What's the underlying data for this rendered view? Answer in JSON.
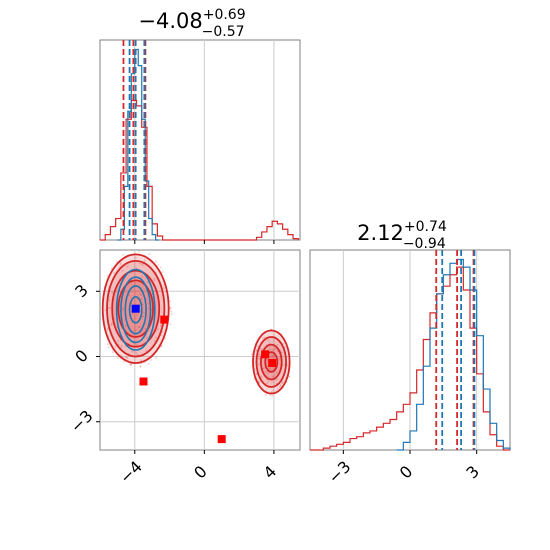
{
  "chart_data": [
    {
      "type": "histogram",
      "panel": "marginal-x",
      "title_main": "−4.08",
      "title_sup": "+0.69",
      "title_sub": "−0.57",
      "xlim": [
        -6,
        5.5
      ],
      "xticks": [
        -4,
        0,
        4
      ],
      "grid": true,
      "series": [
        {
          "color": "#d62728",
          "bin_edges": [
            -6.0,
            -5.7,
            -5.4,
            -5.1,
            -4.8,
            -4.5,
            -4.2,
            -3.9,
            -3.6,
            -3.3,
            -3.0,
            -2.7,
            -2.4,
            -2.1,
            -1.8,
            -1.5,
            -1.2,
            -0.9,
            -0.6,
            -0.3,
            0.0,
            0.3,
            0.6,
            0.9,
            1.2,
            1.5,
            1.8,
            2.1,
            2.4,
            2.7,
            3.0,
            3.3,
            3.6,
            3.9,
            4.2,
            4.5,
            4.8,
            5.1,
            5.4
          ],
          "counts": [
            0,
            0.2,
            0.5,
            0.8,
            2.5,
            4.5,
            5.2,
            5.0,
            4.2,
            2.0,
            0.6,
            0.15,
            0,
            0,
            0,
            0,
            0,
            0,
            0,
            0,
            0,
            0,
            0,
            0,
            0,
            0,
            0,
            0,
            0,
            0,
            0.1,
            0.3,
            0.5,
            0.7,
            0.6,
            0.4,
            0.2,
            0.05
          ],
          "dashed_lines": [
            -4.65,
            -4.08,
            -3.39
          ]
        },
        {
          "color": "#1f77b4",
          "bin_edges": [
            -5.0,
            -4.8,
            -4.6,
            -4.4,
            -4.2,
            -4.0,
            -3.8,
            -3.6,
            -3.4,
            -3.2,
            -3.0,
            -2.8,
            -2.6
          ],
          "counts": [
            0,
            0.4,
            2.0,
            4.8,
            6.2,
            7.1,
            6.5,
            4.5,
            2.2,
            0.8,
            0.2,
            0
          ],
          "dashed_lines": [
            -4.3,
            -3.95,
            -3.45
          ]
        }
      ]
    },
    {
      "type": "histogram",
      "panel": "marginal-y",
      "title_main": "2.12",
      "title_sup": "+0.74",
      "title_sub": "−0.94",
      "xlim": [
        -4.5,
        4.5
      ],
      "xticks": [
        -3,
        0,
        3
      ],
      "grid": true,
      "series": [
        {
          "color": "#d62728",
          "bin_edges": [
            -4.5,
            -4.2,
            -3.9,
            -3.6,
            -3.3,
            -3.0,
            -2.7,
            -2.4,
            -2.1,
            -1.8,
            -1.5,
            -1.2,
            -0.9,
            -0.6,
            -0.3,
            0.0,
            0.3,
            0.6,
            0.9,
            1.2,
            1.5,
            1.8,
            2.1,
            2.4,
            2.7,
            3.0,
            3.3,
            3.6,
            3.9,
            4.2,
            4.5
          ],
          "counts": [
            0,
            0,
            0.05,
            0.1,
            0.15,
            0.2,
            0.3,
            0.35,
            0.45,
            0.5,
            0.6,
            0.7,
            0.8,
            1.0,
            1.2,
            1.5,
            2.1,
            2.9,
            3.6,
            4.1,
            4.3,
            4.6,
            4.8,
            4.2,
            3.2,
            2.0,
            1.0,
            0.4,
            0.1,
            0
          ],
          "dashed_lines": [
            1.18,
            2.12,
            2.86
          ]
        },
        {
          "color": "#1f77b4",
          "bin_edges": [
            -0.6,
            -0.3,
            0.0,
            0.3,
            0.6,
            0.9,
            1.2,
            1.5,
            1.8,
            2.1,
            2.4,
            2.7,
            3.0,
            3.3,
            3.6,
            3.9,
            4.2,
            4.5
          ],
          "counts": [
            0,
            0.2,
            0.5,
            1.2,
            2.2,
            3.2,
            4.1,
            4.6,
            4.9,
            5.0,
            4.8,
            4.2,
            3.0,
            1.6,
            0.7,
            0.25,
            0.05
          ],
          "dashed_lines": [
            1.45,
            2.3,
            2.9
          ]
        }
      ]
    },
    {
      "type": "scatter",
      "panel": "joint",
      "xlim": [
        -6,
        5.5
      ],
      "ylim": [
        -4.3,
        4.9
      ],
      "xticks": [
        -4,
        0,
        4
      ],
      "yticks": [
        -3,
        0,
        3
      ],
      "grid": true,
      "contours": [
        {
          "color": "#d62728",
          "cx": -3.95,
          "cy": 2.2,
          "rx": [
            1.9,
            1.65,
            1.35,
            1.0
          ],
          "ry": [
            2.5,
            2.2,
            1.75,
            1.3
          ]
        },
        {
          "color": "#d62728",
          "cx": 3.85,
          "cy": -0.25,
          "rx": [
            1.05,
            0.85,
            0.6,
            0.35
          ],
          "ry": [
            1.45,
            1.15,
            0.8,
            0.45
          ]
        },
        {
          "color": "#1f77b4",
          "cx": -3.95,
          "cy": 2.15,
          "rx": [
            1.1,
            0.85,
            0.6,
            0.35
          ],
          "ry": [
            1.85,
            1.5,
            1.1,
            0.6
          ]
        }
      ],
      "points_red": [
        [
          -2.3,
          1.7
        ],
        [
          -3.5,
          -1.15
        ],
        [
          1.0,
          -3.8
        ],
        [
          3.5,
          0.1
        ],
        [
          3.9,
          -0.3
        ]
      ],
      "points_blue": [
        [
          -3.95,
          2.2
        ]
      ]
    }
  ]
}
